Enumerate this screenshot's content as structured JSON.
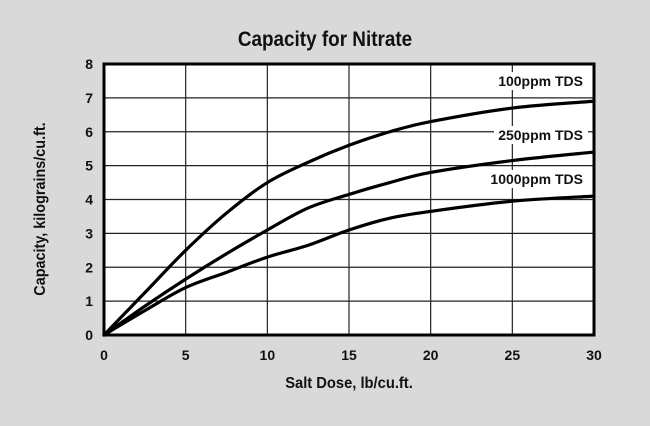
{
  "chart_data": {
    "type": "line",
    "title": "Capacity for Nitrate",
    "xlabel": "Salt Dose, lb/cu.ft.",
    "ylabel": "Capacity, kilograins/cu.ft.",
    "xlim": [
      0,
      30
    ],
    "ylim": [
      0,
      8
    ],
    "xticks": [
      0,
      5,
      10,
      15,
      20,
      25,
      30
    ],
    "yticks": [
      0,
      1,
      2,
      3,
      4,
      5,
      6,
      7,
      8
    ],
    "grid": true,
    "legend_position": "inline-right",
    "x": [
      0,
      2.5,
      5,
      7.5,
      10,
      12.5,
      15,
      17.5,
      20,
      25,
      30
    ],
    "series": [
      {
        "name": "100ppm TDS",
        "values": [
          0,
          1.25,
          2.5,
          3.6,
          4.5,
          5.1,
          5.6,
          6.0,
          6.3,
          6.7,
          6.9
        ]
      },
      {
        "name": "250ppm TDS",
        "values": [
          0,
          0.85,
          1.65,
          2.4,
          3.1,
          3.75,
          4.15,
          4.5,
          4.8,
          5.15,
          5.4
        ]
      },
      {
        "name": "1000ppm TDS",
        "values": [
          0,
          0.72,
          1.4,
          1.85,
          2.3,
          2.65,
          3.1,
          3.45,
          3.65,
          3.95,
          4.1
        ]
      }
    ]
  },
  "colors": {
    "background": "#d9d9d9",
    "plot_background": "#ffffff",
    "line": "#000000",
    "grid": "#222222"
  }
}
